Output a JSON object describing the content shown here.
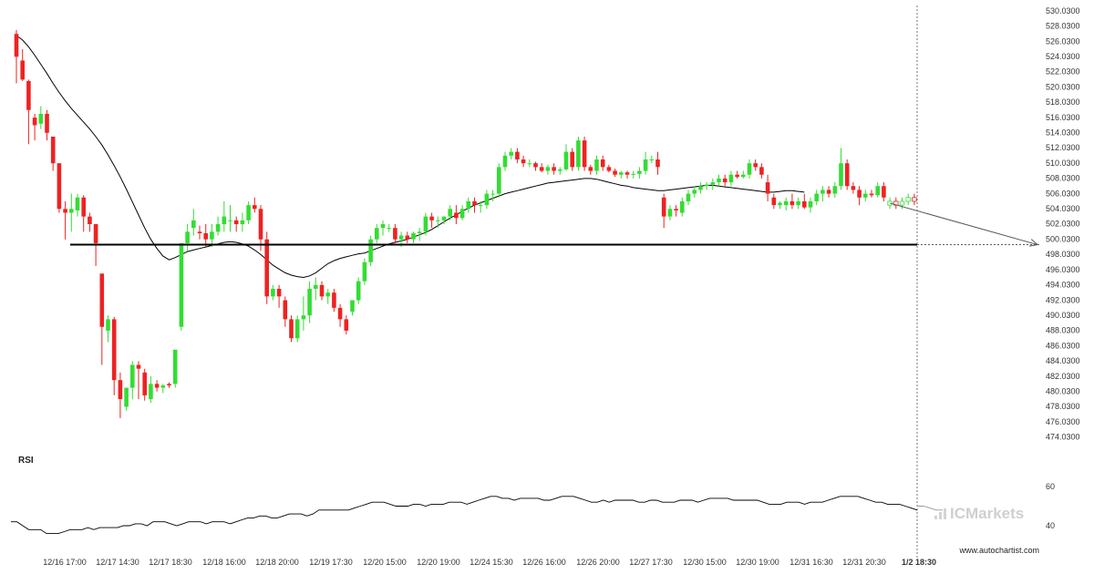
{
  "chart_data": [
    {
      "type": "candlestick",
      "y_ticks": [
        "530.0300",
        "528.0300",
        "526.0300",
        "524.0300",
        "522.0300",
        "520.0300",
        "518.0300",
        "516.0300",
        "514.0300",
        "512.0300",
        "510.0300",
        "508.0300",
        "506.0300",
        "504.0300",
        "502.0300",
        "500.0300",
        "498.0300",
        "496.0300",
        "494.0300",
        "492.0300",
        "490.0300",
        "488.0300",
        "486.0300",
        "484.0300",
        "482.0300",
        "480.0300",
        "478.0300",
        "476.0300",
        "474.0300"
      ],
      "ylim": [
        473.5,
        530.5
      ],
      "x_ticks": [
        "12/16 17:00",
        "12/17 14:30",
        "12/17 18:30",
        "12/18 16:00",
        "12/18 20:00",
        "12/19 17:30",
        "12/20 15:00",
        "12/20 19:00",
        "12/24 15:30",
        "12/26 16:00",
        "12/26 20:00",
        "12/27 17:30",
        "12/30 15:00",
        "12/30 19:00",
        "12/31 16:30",
        "12/31 20:30",
        "1/2 18:30"
      ],
      "current_x_tick": "1/2 18:30",
      "support_level": 499.3,
      "projection_end": 499.3,
      "colors": {
        "up": "#33dd33",
        "down": "#ee2222",
        "line": "#000000",
        "pattern": "#555555"
      },
      "candles": [
        [
          527.0,
          527.5,
          520.5,
          524.0
        ],
        [
          523.5,
          525.0,
          520.8,
          521.0
        ],
        [
          520.8,
          521.0,
          512.5,
          517.0
        ],
        [
          516.0,
          516.5,
          513.0,
          515.0
        ],
        [
          515.2,
          517.5,
          514.5,
          516.5
        ],
        [
          516.5,
          517.0,
          513.0,
          514.0
        ],
        [
          513.5,
          513.5,
          509.0,
          510.0
        ],
        [
          510.0,
          510.0,
          503.5,
          504.0
        ],
        [
          504.0,
          505.0,
          500.0,
          503.5
        ],
        [
          503.5,
          506.0,
          501.0,
          504.0
        ],
        [
          503.8,
          506.0,
          503.0,
          505.5
        ],
        [
          505.5,
          505.8,
          501.0,
          503.0
        ],
        [
          503.0,
          503.5,
          501.0,
          502.0
        ],
        [
          502.0,
          502.0,
          496.5,
          499.5
        ],
        [
          495.5,
          495.5,
          483.5,
          488.5
        ],
        [
          488.0,
          490.0,
          486.5,
          489.5
        ],
        [
          489.5,
          489.8,
          479.5,
          481.5
        ],
        [
          481.5,
          482.5,
          476.5,
          479.0
        ],
        [
          478.0,
          480.0,
          477.5,
          480.5
        ],
        [
          480.5,
          484.0,
          479.0,
          483.5
        ],
        [
          483.5,
          484.0,
          479.0,
          483.0
        ],
        [
          482.5,
          483.0,
          478.8,
          479.5
        ],
        [
          479.0,
          482.0,
          478.5,
          481.0
        ],
        [
          481.0,
          481.5,
          480.0,
          480.5
        ],
        [
          480.5,
          481.0,
          479.8,
          480.8
        ],
        [
          481.0,
          481.2,
          480.5,
          480.8
        ],
        [
          481.0,
          485.5,
          480.5,
          485.5
        ],
        [
          488.5,
          499.5,
          488.0,
          499.5
        ],
        [
          499.5,
          502.0,
          498.5,
          501.0
        ],
        [
          501.5,
          504.0,
          500.5,
          502.5
        ],
        [
          501.0,
          501.8,
          500.0,
          500.8
        ],
        [
          500.8,
          502.0,
          499.0,
          500.0
        ],
        [
          500.0,
          502.0,
          499.0,
          501.0
        ],
        [
          501.0,
          503.0,
          500.5,
          502.0
        ],
        [
          502.0,
          505.0,
          501.0,
          503.0
        ],
        [
          502.5,
          504.5,
          501.0,
          502.5
        ],
        [
          502.5,
          503.0,
          501.0,
          502.0
        ],
        [
          502.0,
          503.5,
          501.0,
          502.5
        ],
        [
          502.5,
          505.0,
          502.0,
          504.5
        ],
        [
          504.5,
          505.5,
          503.5,
          504.0
        ],
        [
          504.0,
          504.5,
          498.5,
          500.0
        ],
        [
          500.0,
          501.0,
          491.5,
          492.5
        ],
        [
          492.5,
          494.0,
          492.0,
          493.5
        ],
        [
          493.5,
          494.0,
          491.0,
          492.5
        ],
        [
          492.0,
          492.5,
          488.5,
          489.5
        ],
        [
          489.5,
          490.0,
          486.5,
          487.0
        ],
        [
          487.0,
          490.0,
          486.5,
          489.5
        ],
        [
          489.5,
          492.5,
          488.0,
          490.0
        ],
        [
          490.0,
          494.5,
          489.0,
          493.5
        ],
        [
          493.5,
          495.0,
          492.0,
          494.0
        ],
        [
          494.0,
          494.5,
          492.0,
          492.5
        ],
        [
          492.5,
          493.5,
          491.5,
          493.0
        ],
        [
          493.0,
          493.5,
          490.5,
          491.0
        ],
        [
          491.0,
          491.5,
          488.5,
          489.5
        ],
        [
          489.5,
          490.0,
          487.5,
          488.0
        ],
        [
          490.5,
          492.0,
          490.0,
          492.0
        ],
        [
          492.0,
          495.0,
          491.5,
          494.5
        ],
        [
          494.5,
          497.5,
          494.0,
          497.0
        ],
        [
          497.0,
          500.5,
          496.5,
          500.0
        ],
        [
          500.0,
          502.0,
          499.5,
          501.5
        ],
        [
          501.5,
          502.5,
          500.5,
          502.0
        ],
        [
          501.5,
          502.0,
          501.0,
          501.5
        ],
        [
          501.5,
          502.0,
          499.5,
          500.0
        ],
        [
          500.0,
          501.0,
          499.0,
          500.5
        ],
        [
          500.5,
          501.0,
          499.5,
          500.0
        ],
        [
          500.0,
          501.0,
          499.5,
          500.8
        ],
        [
          500.8,
          501.5,
          499.8,
          501.0
        ],
        [
          501.0,
          503.5,
          500.5,
          503.0
        ],
        [
          503.0,
          503.5,
          501.5,
          502.5
        ],
        [
          502.5,
          503.0,
          501.5,
          502.5
        ],
        [
          502.5,
          503.0,
          502.0,
          503.0
        ],
        [
          503.0,
          504.5,
          502.5,
          504.0
        ],
        [
          503.5,
          504.5,
          502.0,
          502.8
        ],
        [
          502.8,
          504.5,
          502.5,
          504.0
        ],
        [
          504.0,
          505.5,
          503.5,
          505.0
        ],
        [
          505.0,
          505.5,
          503.5,
          504.5
        ],
        [
          504.5,
          505.0,
          503.5,
          504.5
        ],
        [
          504.5,
          506.5,
          504.0,
          506.0
        ],
        [
          506.0,
          506.5,
          505.0,
          506.0
        ],
        [
          506.0,
          510.0,
          505.5,
          509.5
        ],
        [
          509.5,
          511.5,
          509.0,
          511.0
        ],
        [
          511.0,
          512.0,
          510.5,
          511.5
        ],
        [
          511.5,
          512.0,
          510.0,
          510.5
        ],
        [
          510.5,
          511.0,
          509.5,
          510.0
        ],
        [
          510.0,
          510.5,
          509.5,
          510.0
        ],
        [
          510.0,
          510.2,
          509.0,
          509.5
        ],
        [
          509.5,
          510.0,
          508.8,
          509.0
        ],
        [
          509.0,
          509.8,
          508.5,
          509.5
        ],
        [
          509.5,
          510.0,
          508.5,
          509.0
        ],
        [
          509.0,
          509.5,
          508.5,
          509.2
        ],
        [
          509.2,
          512.5,
          509.0,
          511.5
        ],
        [
          511.5,
          512.0,
          509.0,
          509.5
        ],
        [
          509.5,
          513.5,
          509.0,
          513.0
        ],
        [
          513.0,
          513.5,
          509.0,
          509.5
        ],
        [
          509.5,
          509.8,
          508.5,
          509.0
        ],
        [
          509.0,
          511.0,
          508.5,
          510.5
        ],
        [
          510.5,
          511.0,
          509.0,
          509.5
        ],
        [
          509.5,
          509.8,
          508.8,
          509.0
        ],
        [
          509.0,
          509.3,
          508.2,
          508.5
        ],
        [
          508.5,
          509.0,
          508.0,
          508.8
        ],
        [
          508.8,
          509.0,
          508.0,
          508.5
        ],
        [
          508.5,
          509.0,
          508.0,
          508.6
        ],
        [
          508.6,
          509.5,
          508.0,
          509.0
        ],
        [
          509.0,
          511.5,
          508.5,
          510.5
        ],
        [
          510.5,
          511.0,
          510.0,
          510.5
        ],
        [
          510.5,
          511.5,
          508.5,
          509.5
        ],
        [
          505.5,
          506.0,
          501.5,
          503.0
        ],
        [
          503.0,
          504.5,
          502.5,
          504.0
        ],
        [
          504.0,
          504.5,
          503.0,
          503.8
        ],
        [
          503.5,
          505.5,
          503.0,
          505.0
        ],
        [
          505.0,
          506.5,
          504.5,
          506.0
        ],
        [
          506.0,
          507.0,
          505.5,
          506.5
        ],
        [
          506.5,
          507.5,
          506.0,
          507.0
        ],
        [
          507.0,
          507.5,
          506.5,
          507.2
        ],
        [
          507.2,
          508.0,
          506.5,
          507.5
        ],
        [
          507.5,
          508.5,
          507.0,
          508.0
        ],
        [
          508.0,
          508.5,
          507.0,
          507.5
        ],
        [
          507.5,
          509.0,
          507.0,
          508.5
        ],
        [
          508.5,
          509.0,
          508.0,
          508.2
        ],
        [
          508.2,
          509.0,
          508.0,
          508.5
        ],
        [
          508.5,
          510.5,
          508.0,
          510.0
        ],
        [
          510.0,
          510.5,
          509.0,
          509.5
        ],
        [
          509.5,
          510.0,
          508.0,
          508.5
        ],
        [
          507.5,
          508.5,
          505.0,
          506.0
        ],
        [
          505.5,
          506.0,
          504.0,
          504.5
        ],
        [
          504.5,
          505.0,
          504.0,
          504.8
        ],
        [
          504.5,
          505.5,
          503.8,
          505.0
        ],
        [
          505.0,
          506.0,
          504.0,
          504.5
        ],
        [
          504.5,
          505.5,
          504.0,
          505.0
        ],
        [
          505.0,
          506.0,
          504.0,
          504.2
        ],
        [
          504.2,
          505.5,
          503.5,
          505.0
        ],
        [
          505.0,
          506.5,
          504.5,
          506.0
        ],
        [
          506.0,
          507.0,
          505.0,
          506.5
        ],
        [
          506.5,
          507.0,
          505.5,
          506.0
        ],
        [
          506.0,
          507.5,
          505.5,
          507.0
        ],
        [
          507.0,
          512.0,
          506.5,
          510.0
        ],
        [
          510.0,
          510.5,
          506.5,
          507.0
        ],
        [
          507.0,
          507.5,
          506.0,
          506.5
        ],
        [
          506.5,
          507.0,
          504.5,
          505.5
        ],
        [
          505.5,
          506.5,
          505.0,
          506.0
        ],
        [
          506.0,
          506.5,
          505.5,
          505.8
        ],
        [
          505.8,
          507.5,
          505.5,
          507.0
        ],
        [
          507.0,
          507.5,
          505.0,
          505.5
        ]
      ],
      "pattern_candles": [
        [
          504.5,
          505.5,
          504.0,
          505.0
        ],
        [
          505.0,
          505.5,
          504.0,
          504.5
        ],
        [
          504.5,
          505.5,
          504.0,
          505.0
        ],
        [
          505.0,
          506.0,
          504.5,
          505.5
        ],
        [
          505.5,
          506.0,
          504.5,
          505.0
        ]
      ],
      "moving_average": [
        526.8,
        526.2,
        525.3,
        524.2,
        523.0,
        521.8,
        520.5,
        519.3,
        518.2,
        517.2,
        516.3,
        515.4,
        514.5,
        513.5,
        512.4,
        511.1,
        509.7,
        508.2,
        506.6,
        504.9,
        503.2,
        501.5,
        500.0,
        498.8,
        497.8,
        497.3,
        497.6,
        498.0,
        498.4,
        498.6,
        498.8,
        499.0,
        499.2,
        499.4,
        499.6,
        499.7,
        499.6,
        499.4,
        499.1,
        498.6,
        498.0,
        497.3,
        496.6,
        496.1,
        495.6,
        495.3,
        495.1,
        495.0,
        495.2,
        495.6,
        496.2,
        496.8,
        497.2,
        497.5,
        497.7,
        497.9,
        498.1,
        498.2,
        498.5,
        498.8,
        499.1,
        499.4,
        499.6,
        499.8,
        500.0,
        500.3,
        500.6,
        500.9,
        501.3,
        501.8,
        502.3,
        502.8,
        503.2,
        503.7,
        504.1,
        504.5,
        504.8,
        505.1,
        505.4,
        505.7,
        506.0,
        506.2,
        506.4,
        506.6,
        506.8,
        507.0,
        507.2,
        507.4,
        507.5,
        507.6,
        507.7,
        507.8,
        507.9,
        508.0,
        508.0,
        507.9,
        507.7,
        507.5,
        507.3,
        507.1,
        507.0,
        506.8,
        506.7,
        506.6,
        506.5,
        506.4,
        506.4,
        506.5,
        506.6,
        506.7,
        506.8,
        506.9,
        507.0,
        507.1,
        507.1,
        507.0,
        506.9,
        506.8,
        506.7,
        506.6,
        506.5,
        506.4,
        506.3,
        506.2,
        506.2,
        506.3,
        506.4,
        506.4,
        506.3,
        506.2
      ]
    },
    {
      "type": "line",
      "title": "RSI",
      "y_ticks": [
        "60",
        "40"
      ],
      "ylim": [
        30,
        70
      ],
      "values": [
        42,
        42,
        40,
        38,
        38,
        38,
        36,
        36,
        36,
        37,
        38,
        38,
        38,
        39,
        38,
        39,
        39,
        39,
        39,
        40,
        40,
        41,
        41,
        40,
        42,
        42,
        42,
        41,
        40,
        41,
        42,
        42,
        42,
        41,
        42,
        42,
        42,
        41,
        42,
        43,
        44,
        44,
        45,
        45,
        44,
        44,
        45,
        46,
        46,
        46,
        45,
        46,
        48,
        48,
        48,
        48,
        48,
        48,
        49,
        50,
        51,
        52,
        52,
        52,
        51,
        50,
        50,
        50,
        51,
        51,
        50,
        51,
        51,
        51,
        52,
        52,
        52,
        51,
        52,
        53,
        54,
        55,
        55,
        54,
        54,
        53,
        54,
        54,
        54,
        54,
        53,
        53,
        54,
        55,
        55,
        55,
        54,
        53,
        52,
        52,
        53,
        52,
        53,
        53,
        53,
        53,
        52,
        52,
        53,
        53,
        52,
        52,
        52,
        53,
        53,
        53,
        52,
        53,
        54,
        54,
        54,
        54,
        53,
        53,
        53,
        53,
        53,
        52,
        51,
        51,
        51,
        52,
        52,
        52,
        51,
        52,
        52,
        52,
        53,
        54,
        55,
        55,
        55,
        55,
        54,
        53,
        52,
        52,
        51,
        51,
        51,
        50,
        49,
        48
      ],
      "pattern_values": [
        50,
        50,
        49,
        48,
        48
      ]
    }
  ],
  "watermark": {
    "brand_prefix": "IC",
    "brand_main": "Markets"
  },
  "footer": {
    "site": "www.autochartist.com"
  }
}
